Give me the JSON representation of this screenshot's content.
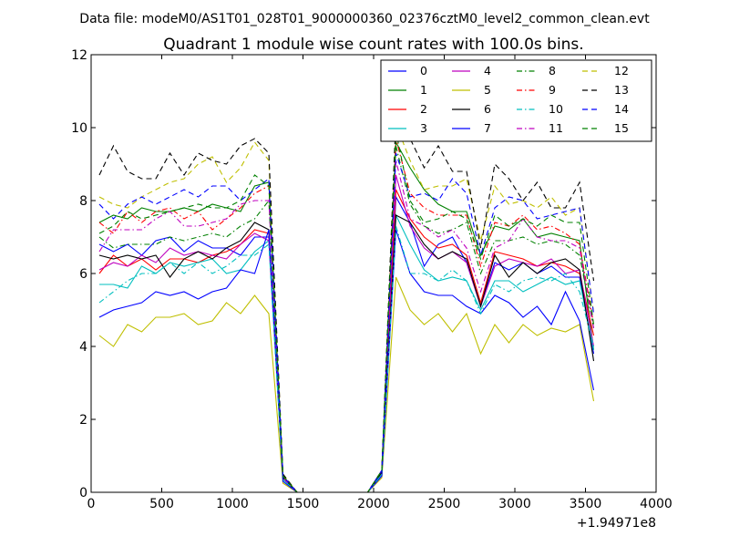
{
  "figure": {
    "suptitle": "Data file: modeM0/AS1T01_028T01_9000000360_02376cztM0_level2_common_clean.evt"
  },
  "chart_data": {
    "type": "line",
    "title": "Quadrant 1 module wise count rates with 100.0s bins.",
    "xlabel": "",
    "ylabel": "",
    "x_offset_label": "+1.94971e8",
    "xlim": [
      0,
      4000
    ],
    "ylim": [
      0,
      12
    ],
    "x_ticks": [
      0,
      500,
      1000,
      1500,
      2000,
      2500,
      3000,
      3500,
      4000
    ],
    "y_ticks": [
      0,
      2,
      4,
      6,
      8,
      10,
      12
    ],
    "grid": false,
    "legend_position": "top-right",
    "legend_columns": 4,
    "x": [
      58,
      158,
      258,
      358,
      458,
      558,
      658,
      758,
      858,
      958,
      1058,
      1158,
      1258,
      1358,
      1458,
      1558,
      1658,
      1758,
      1858,
      1958,
      2058,
      2158,
      2258,
      2358,
      2458,
      2558,
      2658,
      2758,
      2858,
      2958,
      3058,
      3158,
      3258,
      3358,
      3458,
      3558
    ],
    "series": [
      {
        "name": "0",
        "color": "#0000ff",
        "dash": "solid",
        "values": [
          6.8,
          6.6,
          6.8,
          6.5,
          6.9,
          7.0,
          6.6,
          6.9,
          6.7,
          6.7,
          6.5,
          7.0,
          7.0,
          0.4,
          0,
          0,
          0,
          0,
          0,
          0,
          0.55,
          8.1,
          7.4,
          6.2,
          6.8,
          7.0,
          6.3,
          5.1,
          6.3,
          6.1,
          6.3,
          6.0,
          6.2,
          5.9,
          5.9,
          3.8
        ]
      },
      {
        "name": "1",
        "color": "#008000",
        "dash": "solid",
        "values": [
          7.4,
          7.6,
          7.5,
          7.8,
          7.7,
          7.7,
          7.8,
          7.7,
          7.9,
          7.8,
          7.7,
          8.4,
          8.5,
          0.45,
          0,
          0,
          0,
          0,
          0,
          0,
          0.55,
          9.6,
          8.9,
          8.3,
          7.9,
          7.7,
          7.7,
          6.5,
          7.3,
          7.2,
          7.5,
          7.0,
          7.1,
          7.0,
          6.9,
          3.9
        ]
      },
      {
        "name": "2",
        "color": "#ff0000",
        "dash": "solid",
        "values": [
          6.0,
          6.5,
          6.2,
          6.4,
          6.1,
          6.4,
          6.4,
          6.3,
          6.5,
          6.6,
          6.8,
          7.2,
          7.1,
          0.4,
          0,
          0,
          0,
          0,
          0,
          0,
          0.55,
          8.3,
          7.5,
          7.0,
          6.7,
          6.8,
          6.5,
          5.2,
          6.6,
          6.5,
          6.4,
          6.2,
          6.3,
          6.2,
          6.0,
          4.3
        ]
      },
      {
        "name": "3",
        "color": "#00bfbf",
        "dash": "solid",
        "values": [
          5.7,
          5.7,
          5.6,
          6.2,
          6.0,
          6.3,
          6.2,
          6.3,
          6.4,
          6.0,
          6.1,
          6.6,
          6.9,
          0.35,
          0,
          0,
          0,
          0,
          0,
          0,
          0.5,
          7.6,
          6.8,
          6.1,
          5.8,
          5.9,
          5.8,
          5.0,
          5.8,
          5.8,
          5.5,
          5.7,
          5.9,
          5.7,
          5.8,
          3.9
        ]
      },
      {
        "name": "4",
        "color": "#bf00bf",
        "dash": "solid",
        "values": [
          6.1,
          6.3,
          6.2,
          6.5,
          6.3,
          6.7,
          6.5,
          6.6,
          6.5,
          6.4,
          6.8,
          7.1,
          6.9,
          0.4,
          0,
          0,
          0,
          0,
          0,
          0,
          0.55,
          8.7,
          7.3,
          6.7,
          6.4,
          6.6,
          6.3,
          5.1,
          6.2,
          6.4,
          6.3,
          6.2,
          6.4,
          6.0,
          6.1,
          4.0
        ]
      },
      {
        "name": "5",
        "color": "#bfbf00",
        "dash": "solid",
        "values": [
          4.3,
          4.0,
          4.6,
          4.4,
          4.8,
          4.8,
          4.9,
          4.6,
          4.7,
          5.2,
          4.9,
          5.4,
          4.9,
          0.25,
          0,
          0,
          0,
          0,
          0,
          0,
          0.4,
          5.9,
          5.0,
          4.6,
          4.9,
          4.4,
          4.9,
          3.8,
          4.6,
          4.1,
          4.6,
          4.3,
          4.5,
          4.4,
          4.6,
          2.5
        ]
      },
      {
        "name": "6",
        "color": "#000000",
        "dash": "solid",
        "values": [
          6.5,
          6.4,
          6.5,
          6.4,
          6.5,
          5.9,
          6.4,
          6.6,
          6.4,
          6.7,
          6.9,
          7.4,
          7.2,
          0.4,
          0,
          0,
          0,
          0,
          0,
          0,
          0.55,
          7.6,
          7.4,
          6.8,
          6.4,
          6.6,
          6.4,
          5.1,
          6.5,
          5.9,
          6.3,
          6.0,
          6.3,
          6.4,
          6.1,
          3.6
        ]
      },
      {
        "name": "7",
        "color": "#0000ff",
        "dash": "solid",
        "values": [
          4.8,
          5.0,
          5.1,
          5.2,
          5.5,
          5.4,
          5.5,
          5.3,
          5.5,
          5.6,
          6.1,
          6.0,
          7.2,
          0.3,
          0,
          0,
          0,
          0,
          0,
          0,
          0.45,
          7.2,
          6.0,
          5.5,
          5.4,
          5.4,
          5.1,
          4.9,
          5.4,
          5.2,
          4.8,
          5.1,
          4.6,
          5.5,
          4.7,
          2.8
        ]
      },
      {
        "name": "8",
        "color": "#008000",
        "dash": "dashdot",
        "values": [
          7.0,
          6.7,
          6.8,
          6.8,
          6.8,
          7.0,
          6.9,
          7.0,
          7.1,
          7.0,
          7.3,
          7.5,
          8.0,
          0.45,
          0,
          0,
          0,
          0,
          0,
          0,
          0.6,
          9.5,
          7.9,
          7.3,
          7.1,
          7.2,
          7.4,
          6.0,
          6.9,
          6.9,
          7.0,
          6.8,
          6.9,
          6.8,
          6.5,
          4.5
        ]
      },
      {
        "name": "9",
        "color": "#ff0000",
        "dash": "dashdot",
        "values": [
          7.4,
          7.1,
          7.7,
          7.4,
          7.7,
          7.8,
          7.5,
          7.7,
          7.2,
          7.5,
          7.8,
          8.2,
          8.4,
          0.45,
          0,
          0,
          0,
          0,
          0,
          0,
          0.6,
          9.7,
          8.2,
          7.8,
          7.6,
          7.6,
          7.6,
          6.2,
          7.4,
          7.3,
          7.6,
          7.2,
          7.3,
          7.1,
          6.8,
          4.6
        ]
      },
      {
        "name": "10",
        "color": "#00bfbf",
        "dash": "dashdot",
        "values": [
          5.2,
          5.5,
          5.8,
          6.0,
          6.0,
          6.3,
          6.0,
          6.3,
          6.0,
          6.2,
          6.5,
          6.5,
          6.8,
          0.35,
          0,
          0,
          0,
          0,
          0,
          0,
          0.5,
          7.3,
          6.0,
          6.0,
          5.8,
          6.1,
          5.8,
          4.9,
          5.7,
          5.5,
          5.8,
          5.9,
          5.8,
          6.0,
          5.5,
          4.0
        ]
      },
      {
        "name": "11",
        "color": "#bf00bf",
        "dash": "dashdot",
        "values": [
          6.6,
          7.2,
          7.2,
          7.2,
          7.5,
          7.7,
          7.3,
          7.3,
          7.4,
          7.5,
          7.9,
          8.0,
          8.0,
          0.4,
          0,
          0,
          0,
          0,
          0,
          0,
          0.6,
          9.1,
          7.5,
          7.3,
          7.0,
          7.2,
          6.7,
          5.5,
          6.7,
          6.9,
          7.5,
          7.0,
          6.9,
          6.9,
          6.7,
          4.5
        ]
      },
      {
        "name": "12",
        "color": "#bfbf00",
        "dash": "dashed",
        "values": [
          8.1,
          7.9,
          7.8,
          8.1,
          8.3,
          8.5,
          8.6,
          9.0,
          9.2,
          8.5,
          8.9,
          9.6,
          9.1,
          0.5,
          0,
          0,
          0,
          0,
          0,
          0,
          0.6,
          10.1,
          9.1,
          8.3,
          8.4,
          8.4,
          8.6,
          6.9,
          8.4,
          7.9,
          8.0,
          7.8,
          8.1,
          7.6,
          7.8,
          4.9
        ]
      },
      {
        "name": "13",
        "color": "#000000",
        "dash": "dashed",
        "values": [
          8.7,
          9.5,
          8.8,
          8.6,
          8.6,
          9.3,
          8.7,
          9.3,
          9.1,
          9.0,
          9.5,
          9.7,
          9.3,
          0.5,
          0,
          0,
          0,
          0,
          0,
          0,
          0.6,
          10.3,
          9.7,
          8.9,
          9.5,
          8.8,
          8.8,
          6.7,
          9.0,
          8.6,
          8.0,
          8.5,
          7.8,
          7.8,
          8.5,
          5.8
        ]
      },
      {
        "name": "14",
        "color": "#0000ff",
        "dash": "dashed",
        "values": [
          7.9,
          7.5,
          7.9,
          8.1,
          7.9,
          8.1,
          8.3,
          8.1,
          8.4,
          8.4,
          8.0,
          8.3,
          8.6,
          0.45,
          0,
          0,
          0,
          0,
          0,
          0,
          0.6,
          9.3,
          8.1,
          8.2,
          8.0,
          8.6,
          8.2,
          6.5,
          7.8,
          8.1,
          8.0,
          7.5,
          7.6,
          7.7,
          7.8,
          4.9
        ]
      },
      {
        "name": "15",
        "color": "#008000",
        "dash": "dashed",
        "values": [
          7.1,
          7.3,
          7.7,
          7.5,
          7.6,
          7.7,
          7.8,
          7.9,
          7.8,
          7.8,
          8.0,
          8.7,
          8.4,
          0.45,
          0,
          0,
          0,
          0,
          0,
          0,
          0.6,
          9.9,
          8.0,
          7.4,
          7.5,
          7.7,
          7.5,
          6.4,
          7.6,
          7.3,
          7.5,
          7.3,
          7.6,
          7.4,
          7.4,
          4.6
        ]
      }
    ]
  }
}
